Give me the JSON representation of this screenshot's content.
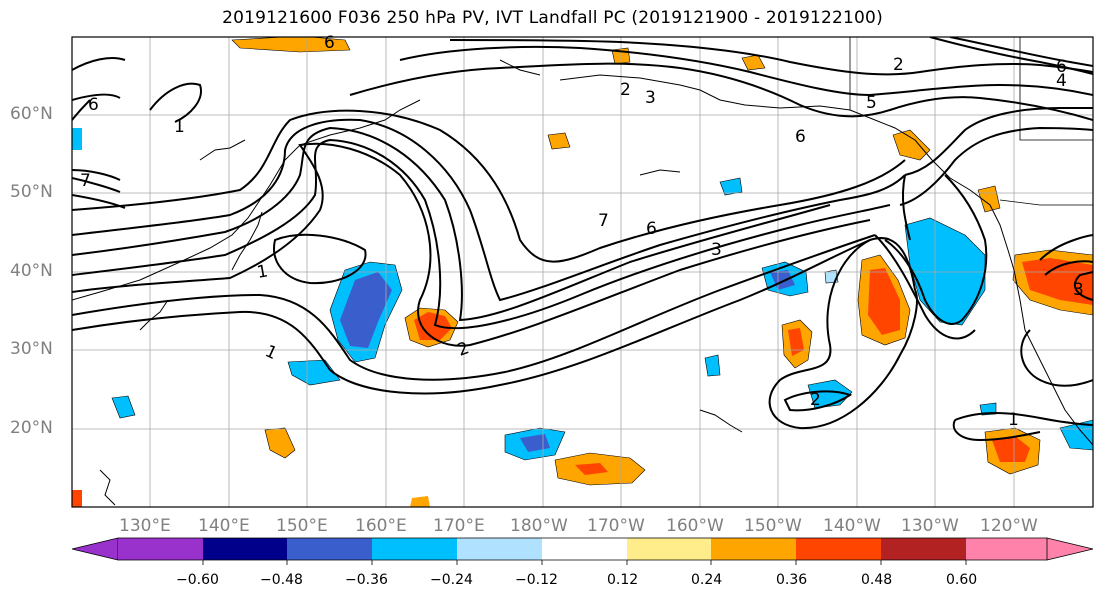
{
  "title": "2019121600 F036 250 hPa PV, IVT Landfall PC (2019121900 - 2019122100)",
  "map": {
    "lat_labels": [
      "60°N",
      "50°N",
      "40°N",
      "30°N",
      "20°N"
    ],
    "lon_labels": [
      "130°E",
      "140°E",
      "150°E",
      "160°E",
      "170°E",
      "180°W",
      "170°W",
      "160°W",
      "150°W",
      "140°W",
      "130°W",
      "120°W"
    ],
    "contour_labels": [
      "6",
      "1",
      "7",
      "5",
      "6",
      "7",
      "6",
      "3",
      "2",
      "6",
      "1",
      "1",
      "2",
      "2",
      "1",
      "3",
      "6",
      "4",
      "2",
      "3"
    ]
  },
  "colorbar": {
    "ticks": [
      "−0.60",
      "−0.48",
      "−0.36",
      "−0.24",
      "−0.12",
      "0.12",
      "0.24",
      "0.36",
      "0.48",
      "0.60"
    ],
    "colors": [
      "#9932CC",
      "#00008B",
      "#3A5FCD",
      "#00BFFF",
      "#B0E2FF",
      "#FFFFFF",
      "#FFEC8B",
      "#FFA500",
      "#FF4500",
      "#B22222",
      "#FF82AB"
    ]
  }
}
